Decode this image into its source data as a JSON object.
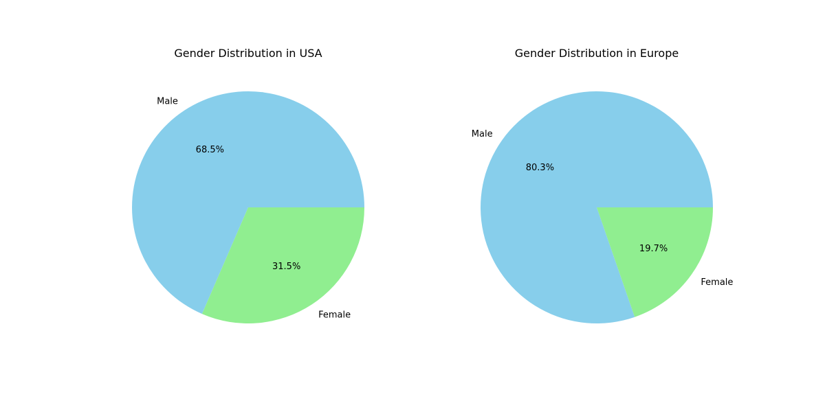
{
  "chart_data": [
    {
      "type": "pie",
      "title": "Gender Distribution in USA",
      "categories": [
        "Male",
        "Female"
      ],
      "values": [
        68.5,
        31.5
      ],
      "value_labels": [
        "68.5%",
        "31.5%"
      ],
      "colors": [
        "#87ceeb",
        "#90ee90"
      ]
    },
    {
      "type": "pie",
      "title": "Gender Distribution in Europe",
      "categories": [
        "Male",
        "Female"
      ],
      "values": [
        80.3,
        19.7
      ],
      "value_labels": [
        "80.3%",
        "19.7%"
      ],
      "colors": [
        "#87ceeb",
        "#90ee90"
      ]
    }
  ]
}
